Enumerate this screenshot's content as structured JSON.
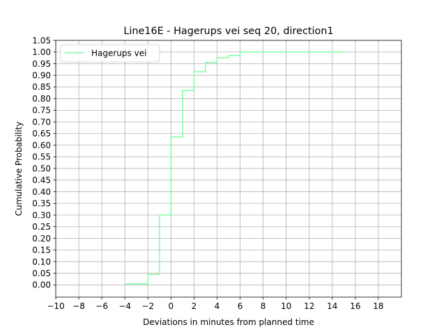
{
  "chart_data": {
    "type": "line",
    "drawstyle": "steps-post",
    "title": "Line16E - Hagerups vei seq 20, direction1",
    "xlabel": "Deviations in minutes from planned time",
    "ylabel": "Cumulative Probability",
    "xlim": [
      -10,
      20
    ],
    "ylim": [
      -0.0525,
      1.05
    ],
    "xticks": [
      -10,
      -8,
      -6,
      -4,
      -2,
      0,
      2,
      4,
      6,
      8,
      10,
      12,
      14,
      16,
      18
    ],
    "xtick_labels": [
      "−10",
      "−8",
      "−6",
      "−4",
      "−2",
      "0",
      "2",
      "4",
      "6",
      "8",
      "10",
      "12",
      "14",
      "16",
      "18"
    ],
    "yticks": [
      0,
      0.05,
      0.1,
      0.15,
      0.2,
      0.25,
      0.3,
      0.35,
      0.4,
      0.45,
      0.5,
      0.55,
      0.6,
      0.65,
      0.7,
      0.75,
      0.8,
      0.85,
      0.9,
      0.95,
      1.0,
      1.05
    ],
    "ytick_labels": [
      "0.00",
      "0.05",
      "0.10",
      "0.15",
      "0.20",
      "0.25",
      "0.30",
      "0.35",
      "0.40",
      "0.45",
      "0.50",
      "0.55",
      "0.60",
      "0.65",
      "0.70",
      "0.75",
      "0.80",
      "0.85",
      "0.90",
      "0.95",
      "1.00",
      "1.05"
    ],
    "grid": true,
    "legend_position": "upper-left",
    "series": [
      {
        "name": "Hagerups vei",
        "color": "#7fffa0",
        "x": [
          -4,
          -2,
          -1,
          0,
          1,
          2,
          3,
          4,
          5,
          6,
          15
        ],
        "y": [
          0.005,
          0.045,
          0.3,
          0.635,
          0.835,
          0.915,
          0.955,
          0.975,
          0.985,
          1.0,
          1.0
        ]
      }
    ]
  }
}
